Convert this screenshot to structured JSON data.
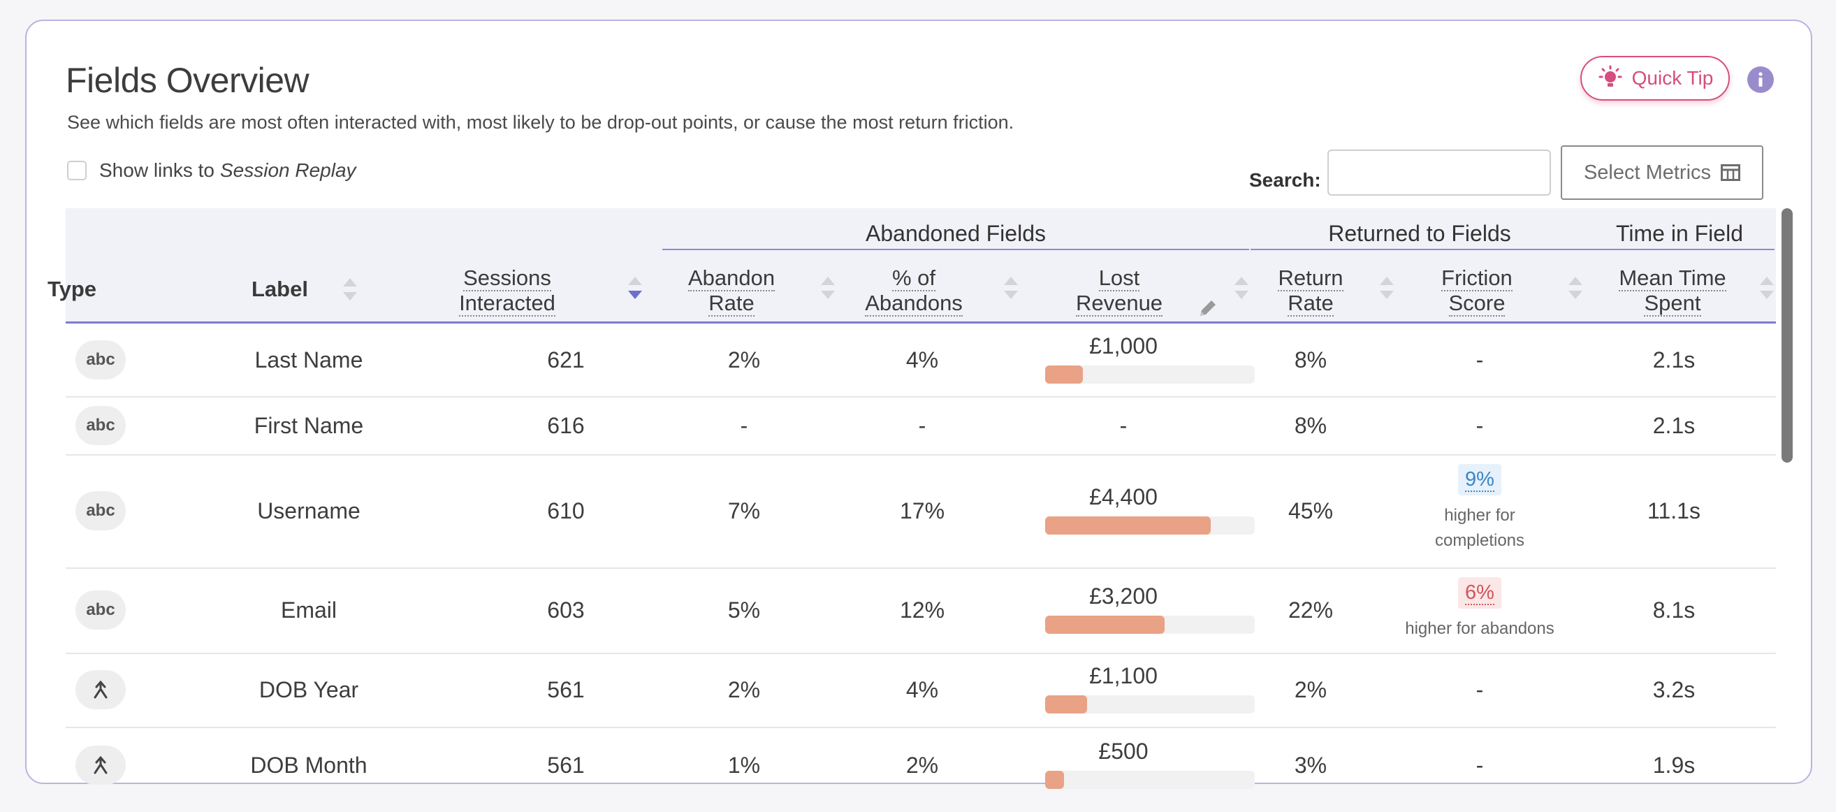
{
  "header": {
    "title": "Fields Overview",
    "subtitle": "See which fields are most often interacted with, most likely to be drop-out points, or cause the most return friction.",
    "quick_tip": "Quick Tip"
  },
  "controls": {
    "show_links_prefix": "Show links to",
    "show_links_target": "Session Replay",
    "search_label": "Search:",
    "search_value": "",
    "select_metrics": "Select Metrics"
  },
  "groups": {
    "abandoned": "Abandoned Fields",
    "returned": "Returned to Fields",
    "time": "Time in Field"
  },
  "columns": {
    "type": "Type",
    "label": "Label",
    "sessions_1": "Sessions",
    "sessions_2": "Interacted",
    "abandon_1": "Abandon",
    "abandon_2": "Rate",
    "pct_1": "% of",
    "pct_2": "Abandons",
    "lost_1": "Lost",
    "lost_2": "Revenue",
    "return_1": "Return",
    "return_2": "Rate",
    "friction_1": "Friction",
    "friction_2": "Score",
    "mean_1": "Mean Time",
    "mean_2": "Spent"
  },
  "rows": [
    {
      "type": "abc",
      "label": "Last Name",
      "sessions": "621",
      "abandon_rate": "2%",
      "pct_abandons": "4%",
      "lost_revenue": "£1,000",
      "lost_fraction": 0.18,
      "return_rate": "8%",
      "friction": "-",
      "friction_note": "",
      "mean_time": "2.1s"
    },
    {
      "type": "abc",
      "label": "First Name",
      "sessions": "616",
      "abandon_rate": "-",
      "pct_abandons": "-",
      "lost_revenue": "-",
      "lost_fraction": 0,
      "return_rate": "8%",
      "friction": "-",
      "friction_note": "",
      "mean_time": "2.1s"
    },
    {
      "type": "abc",
      "label": "Username",
      "sessions": "610",
      "abandon_rate": "7%",
      "pct_abandons": "17%",
      "lost_revenue": "£4,400",
      "lost_fraction": 0.79,
      "return_rate": "45%",
      "friction": "9%",
      "friction_note_1": "higher for",
      "friction_note_2": "completions",
      "mean_time": "11.1s"
    },
    {
      "type": "abc",
      "label": "Email",
      "sessions": "603",
      "abandon_rate": "5%",
      "pct_abandons": "12%",
      "lost_revenue": "£3,200",
      "lost_fraction": 0.57,
      "return_rate": "22%",
      "friction": "6%",
      "friction_note_1": "higher for abandons",
      "mean_time": "8.1s"
    },
    {
      "type": "select",
      "label": "DOB Year",
      "sessions": "561",
      "abandon_rate": "2%",
      "pct_abandons": "4%",
      "lost_revenue": "£1,100",
      "lost_fraction": 0.2,
      "return_rate": "2%",
      "friction": "-",
      "friction_note": "",
      "mean_time": "3.2s"
    },
    {
      "type": "select",
      "label": "DOB Month",
      "sessions": "561",
      "abandon_rate": "1%",
      "pct_abandons": "2%",
      "lost_revenue": "£500",
      "lost_fraction": 0.09,
      "return_rate": "3%",
      "friction": "-",
      "friction_note": "",
      "mean_time": "1.9s"
    }
  ],
  "colors": {
    "accent": "#d64d7f",
    "header_bg": "#f1f1f8",
    "bar": "#e9a285",
    "friction_good": "#3a86c8",
    "friction_bad": "#d2555a"
  }
}
